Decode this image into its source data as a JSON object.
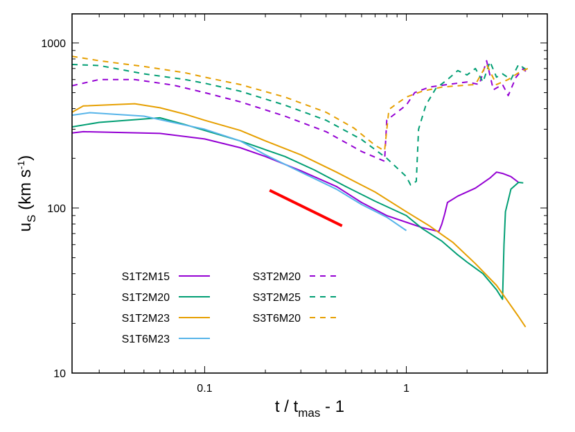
{
  "chart_data": {
    "type": "line",
    "xscale": "log",
    "yscale": "log",
    "xlim": [
      0.022,
      5.0
    ],
    "ylim": [
      10,
      1500
    ],
    "xticks": [
      {
        "value": 0.1,
        "label": "0.1"
      },
      {
        "value": 1,
        "label": "1"
      }
    ],
    "yticks": [
      {
        "value": 10,
        "label": "10"
      },
      {
        "value": 100,
        "label": "100"
      },
      {
        "value": 1000,
        "label": "1000"
      }
    ],
    "xlabel": {
      "main": "t / t",
      "sub": "mas",
      "tail": " - 1"
    },
    "ylabel": {
      "main": "u",
      "sub": "S",
      "tail_pre": " (km s",
      "sup": "-1",
      "tail_post": ")"
    },
    "grid": false,
    "legend_position": "bottom-left",
    "series": [
      {
        "name": "S1T2M15",
        "color": "#9400d3",
        "dash": "solid",
        "points": [
          [
            0.022,
            285
          ],
          [
            0.025,
            290
          ],
          [
            0.06,
            283
          ],
          [
            0.1,
            262
          ],
          [
            0.15,
            232
          ],
          [
            0.2,
            205
          ],
          [
            0.3,
            168
          ],
          [
            0.45,
            135
          ],
          [
            0.6,
            108
          ],
          [
            0.8,
            90
          ],
          [
            1.0,
            82
          ],
          [
            1.2,
            76
          ],
          [
            1.45,
            72
          ],
          [
            1.5,
            80
          ],
          [
            1.55,
            92
          ],
          [
            1.6,
            108
          ],
          [
            1.8,
            118
          ],
          [
            2.2,
            132
          ],
          [
            2.6,
            152
          ],
          [
            2.8,
            165
          ],
          [
            3.0,
            162
          ],
          [
            3.3,
            155
          ],
          [
            3.6,
            143
          ]
        ]
      },
      {
        "name": "S1T2M20",
        "color": "#009e73",
        "dash": "solid",
        "points": [
          [
            0.022,
            310
          ],
          [
            0.03,
            330
          ],
          [
            0.06,
            352
          ],
          [
            0.08,
            320
          ],
          [
            0.1,
            295
          ],
          [
            0.15,
            255
          ],
          [
            0.25,
            205
          ],
          [
            0.35,
            170
          ],
          [
            0.5,
            135
          ],
          [
            0.7,
            110
          ],
          [
            1.0,
            90
          ],
          [
            1.2,
            75
          ],
          [
            1.5,
            63
          ],
          [
            1.8,
            52
          ],
          [
            2.0,
            47
          ],
          [
            2.4,
            40
          ],
          [
            2.8,
            32
          ],
          [
            3.0,
            28
          ],
          [
            3.05,
            60
          ],
          [
            3.1,
            95
          ],
          [
            3.3,
            130
          ],
          [
            3.6,
            143
          ],
          [
            3.8,
            142
          ]
        ]
      },
      {
        "name": "S1T2M23",
        "color": "#e69f00",
        "dash": "solid",
        "points": [
          [
            0.022,
            380
          ],
          [
            0.025,
            415
          ],
          [
            0.045,
            428
          ],
          [
            0.06,
            405
          ],
          [
            0.08,
            370
          ],
          [
            0.1,
            340
          ],
          [
            0.15,
            295
          ],
          [
            0.2,
            255
          ],
          [
            0.3,
            210
          ],
          [
            0.45,
            165
          ],
          [
            0.7,
            125
          ],
          [
            1.0,
            95
          ],
          [
            1.3,
            78
          ],
          [
            1.7,
            62
          ],
          [
            2.2,
            46
          ],
          [
            2.8,
            34
          ],
          [
            3.2,
            27
          ],
          [
            3.6,
            22
          ],
          [
            3.9,
            19
          ]
        ]
      },
      {
        "name": "S1T6M23",
        "color": "#56b4e9",
        "dash": "solid",
        "points": [
          [
            0.022,
            365
          ],
          [
            0.027,
            378
          ],
          [
            0.05,
            360
          ],
          [
            0.1,
            300
          ],
          [
            0.15,
            255
          ],
          [
            0.2,
            210
          ],
          [
            0.3,
            165
          ],
          [
            0.45,
            130
          ],
          [
            0.6,
            105
          ],
          [
            0.8,
            88
          ],
          [
            1.0,
            73
          ]
        ]
      },
      {
        "name": "S3T2M20",
        "color": "#9400d3",
        "dash": "dashed",
        "points": [
          [
            0.022,
            550
          ],
          [
            0.03,
            600
          ],
          [
            0.045,
            600
          ],
          [
            0.07,
            555
          ],
          [
            0.1,
            500
          ],
          [
            0.15,
            440
          ],
          [
            0.25,
            360
          ],
          [
            0.4,
            290
          ],
          [
            0.6,
            220
          ],
          [
            0.78,
            192
          ],
          [
            0.8,
            340
          ],
          [
            1.0,
            420
          ],
          [
            1.1,
            500
          ],
          [
            1.3,
            540
          ],
          [
            1.6,
            560
          ],
          [
            2.0,
            580
          ],
          [
            2.3,
            560
          ],
          [
            2.5,
            780
          ],
          [
            2.7,
            520
          ],
          [
            3.0,
            560
          ],
          [
            3.2,
            480
          ],
          [
            3.5,
            620
          ],
          [
            3.8,
            700
          ],
          [
            4.0,
            650
          ]
        ]
      },
      {
        "name": "S3T2M25",
        "color": "#009e73",
        "dash": "dashed",
        "points": [
          [
            0.022,
            740
          ],
          [
            0.03,
            730
          ],
          [
            0.05,
            650
          ],
          [
            0.08,
            600
          ],
          [
            0.1,
            570
          ],
          [
            0.15,
            510
          ],
          [
            0.25,
            420
          ],
          [
            0.4,
            340
          ],
          [
            0.6,
            260
          ],
          [
            0.8,
            200
          ],
          [
            1.0,
            155
          ],
          [
            1.05,
            138
          ],
          [
            1.12,
            145
          ],
          [
            1.15,
            300
          ],
          [
            1.25,
            420
          ],
          [
            1.4,
            530
          ],
          [
            1.6,
            600
          ],
          [
            1.8,
            680
          ],
          [
            2.0,
            640
          ],
          [
            2.2,
            700
          ],
          [
            2.4,
            580
          ],
          [
            2.6,
            770
          ],
          [
            2.8,
            620
          ],
          [
            3.0,
            650
          ],
          [
            3.3,
            600
          ],
          [
            3.6,
            740
          ],
          [
            4.0,
            680
          ]
        ]
      },
      {
        "name": "S3T6M20",
        "color": "#e69f00",
        "dash": "dashed",
        "points": [
          [
            0.022,
            830
          ],
          [
            0.03,
            780
          ],
          [
            0.05,
            720
          ],
          [
            0.08,
            660
          ],
          [
            0.1,
            620
          ],
          [
            0.15,
            560
          ],
          [
            0.25,
            470
          ],
          [
            0.4,
            380
          ],
          [
            0.55,
            305
          ],
          [
            0.7,
            240
          ],
          [
            0.78,
            222
          ],
          [
            0.82,
            395
          ],
          [
            0.9,
            430
          ],
          [
            1.0,
            470
          ],
          [
            1.2,
            510
          ],
          [
            1.5,
            540
          ],
          [
            1.8,
            550
          ],
          [
            2.2,
            560
          ],
          [
            2.5,
            740
          ],
          [
            2.8,
            560
          ],
          [
            3.2,
            600
          ],
          [
            3.6,
            660
          ],
          [
            4.0,
            700
          ]
        ]
      }
    ],
    "reference_line": {
      "color": "#ff0000",
      "points": [
        [
          0.21,
          128
        ],
        [
          0.48,
          78
        ]
      ]
    }
  }
}
